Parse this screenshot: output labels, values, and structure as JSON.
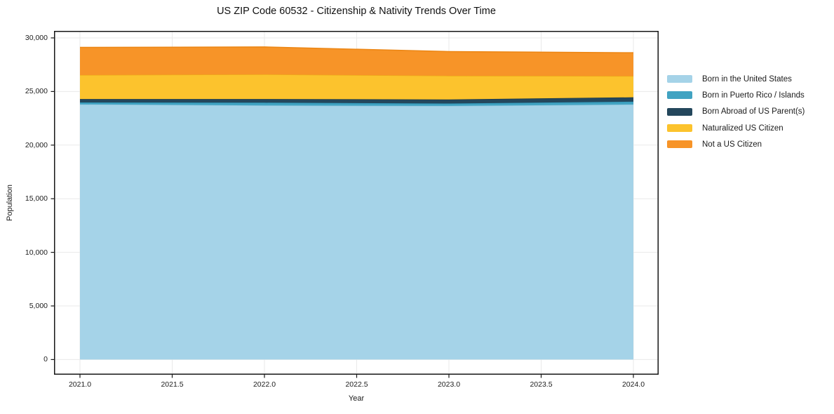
{
  "chart_data": {
    "type": "area",
    "stacked": true,
    "title": "US ZIP Code 60532 - Citizenship & Nativity Trends Over Time",
    "xlabel": "Year",
    "ylabel": "Population",
    "x": [
      2021,
      2022,
      2023,
      2024
    ],
    "series": [
      {
        "name": "Born in the United States",
        "color": "#a5d3e8",
        "edge_color": "#8fc4dc",
        "values": [
          23800,
          23700,
          23660,
          23790
        ]
      },
      {
        "name": "Born in Puerto Rico / Islands",
        "color": "#41a3c2",
        "edge_color": "#2e93b5",
        "values": [
          180,
          260,
          220,
          260
        ]
      },
      {
        "name": "Born Abroad of US Parent(s)",
        "color": "#24475c",
        "edge_color": "#1c3a4c",
        "values": [
          320,
          340,
          380,
          410
        ]
      },
      {
        "name": "Naturalized US Citizen",
        "color": "#fcc32d",
        "edge_color": "#eeab18",
        "values": [
          2240,
          2300,
          2210,
          1980
        ]
      },
      {
        "name": "Not a US Citizen",
        "color": "#f79428",
        "edge_color": "#ec8614",
        "values": [
          2575,
          2555,
          2255,
          2175
        ]
      }
    ],
    "x_tick_values": [
      2021.0,
      2021.5,
      2022.0,
      2022.5,
      2023.0,
      2023.5,
      2024.0
    ],
    "x_tick_labels": [
      "2021.0",
      "2021.5",
      "2022.0",
      "2022.5",
      "2023.0",
      "2023.5",
      "2024.0"
    ],
    "y_tick_values": [
      0,
      5000,
      10000,
      15000,
      20000,
      25000,
      30000
    ],
    "y_tick_labels": [
      "0",
      "5,000",
      "10,000",
      "15,000",
      "20,000",
      "25,000",
      "30,000"
    ],
    "ylim": [
      0,
      30000
    ],
    "xlim": [
      2021,
      2024
    ],
    "grid": true,
    "grid_color": "#e9e9e9",
    "axis_color": "#161616",
    "legend_position": "right-outside"
  }
}
